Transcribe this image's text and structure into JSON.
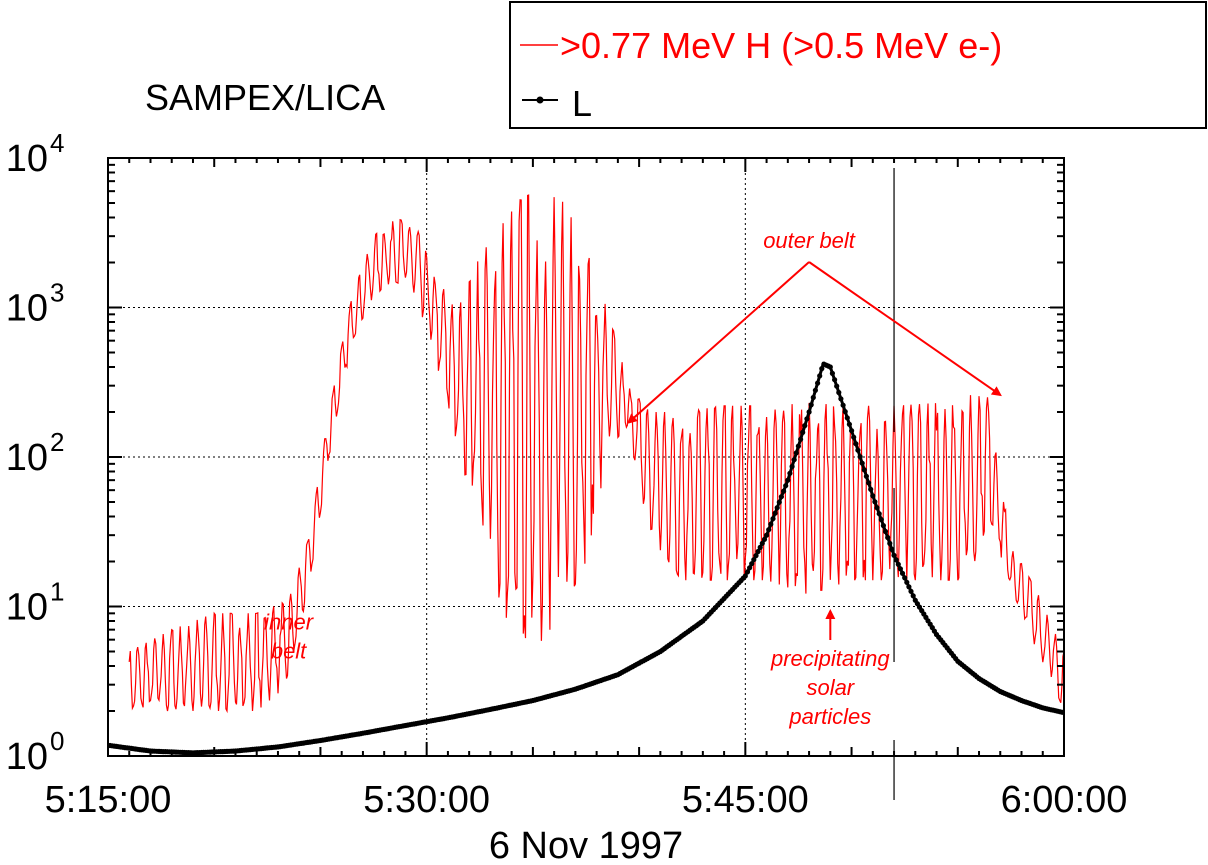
{
  "chart_data": {
    "type": "line",
    "title": "SAMPEX/LICA",
    "xlabel": "6 Nov 1997",
    "ylabel": "",
    "y_scale": "log",
    "xlim": [
      "5:15:00",
      "6:00:00"
    ],
    "ylim": [
      1,
      10000
    ],
    "x_ticks": [
      "5:15:00",
      "5:30:00",
      "5:45:00",
      "6:00:00"
    ],
    "y_ticks": [
      {
        "base": "10",
        "exp": "0"
      },
      {
        "base": "10",
        "exp": "1"
      },
      {
        "base": "10",
        "exp": "2"
      },
      {
        "base": "10",
        "exp": "3"
      },
      {
        "base": "10",
        "exp": "4"
      }
    ],
    "grid": "dotted at major ticks",
    "legend_position": "top-right",
    "series": [
      {
        "name": ">0.77 MeV H (>0.5 MeV e-)",
        "color": "#ff0000",
        "style": "line",
        "envelope": [
          {
            "x": "5:16:00",
            "min": 2,
            "max": 5
          },
          {
            "x": "5:18:00",
            "min": 2,
            "max": 7
          },
          {
            "x": "5:20:00",
            "min": 2,
            "max": 9
          },
          {
            "x": "5:22:00",
            "min": 2,
            "max": 9
          },
          {
            "x": "5:23:30",
            "min": 3,
            "max": 11
          },
          {
            "x": "5:24:30",
            "min": 15,
            "max": 30
          },
          {
            "x": "5:25:30",
            "min": 120,
            "max": 250
          },
          {
            "x": "5:26:30",
            "min": 600,
            "max": 1200
          },
          {
            "x": "5:27:30",
            "min": 1200,
            "max": 3000
          },
          {
            "x": "5:28:30",
            "min": 1500,
            "max": 4000
          },
          {
            "x": "5:29:30",
            "min": 1200,
            "max": 3500
          },
          {
            "x": "5:30:30",
            "min": 400,
            "max": 1500
          },
          {
            "x": "5:31:30",
            "min": 100,
            "max": 1000
          },
          {
            "x": "5:32:30",
            "min": 40,
            "max": 2200
          },
          {
            "x": "5:33:30",
            "min": 10,
            "max": 3500
          },
          {
            "x": "5:34:30",
            "min": 5,
            "max": 5500
          },
          {
            "x": "5:35:30",
            "min": 6,
            "max": 6000
          },
          {
            "x": "5:36:30",
            "min": 10,
            "max": 5000
          },
          {
            "x": "5:37:30",
            "min": 20,
            "max": 2500
          },
          {
            "x": "5:38:30",
            "min": 100,
            "max": 1000
          },
          {
            "x": "5:39:30",
            "min": 150,
            "max": 300
          },
          {
            "x": "5:40:30",
            "min": 30,
            "max": 200
          },
          {
            "x": "5:42:00",
            "min": 15,
            "max": 200
          },
          {
            "x": "5:44:00",
            "min": 15,
            "max": 220
          },
          {
            "x": "5:46:00",
            "min": 15,
            "max": 220
          },
          {
            "x": "5:48:00",
            "min": 12,
            "max": 230
          },
          {
            "x": "5:50:00",
            "min": 15,
            "max": 220
          },
          {
            "x": "5:52:00",
            "min": 15,
            "max": 220
          },
          {
            "x": "5:54:00",
            "min": 15,
            "max": 230
          },
          {
            "x": "5:55:30",
            "min": 15,
            "max": 260
          },
          {
            "x": "5:56:30",
            "min": 40,
            "max": 250
          },
          {
            "x": "5:57:30",
            "min": 12,
            "max": 25
          },
          {
            "x": "5:58:30",
            "min": 6,
            "max": 15
          },
          {
            "x": "5:59:30",
            "min": 3,
            "max": 7
          },
          {
            "x": "6:00:00",
            "min": 2,
            "max": 5
          }
        ]
      },
      {
        "name": "L",
        "color": "#000000",
        "style": "line with dot markers",
        "points": [
          {
            "x": "5:15:00",
            "y": 1.18
          },
          {
            "x": "5:17:00",
            "y": 1.08
          },
          {
            "x": "5:19:00",
            "y": 1.05
          },
          {
            "x": "5:21:00",
            "y": 1.08
          },
          {
            "x": "5:23:00",
            "y": 1.15
          },
          {
            "x": "5:25:00",
            "y": 1.27
          },
          {
            "x": "5:27:00",
            "y": 1.42
          },
          {
            "x": "5:29:00",
            "y": 1.6
          },
          {
            "x": "5:31:00",
            "y": 1.8
          },
          {
            "x": "5:33:00",
            "y": 2.05
          },
          {
            "x": "5:35:00",
            "y": 2.35
          },
          {
            "x": "5:37:00",
            "y": 2.8
          },
          {
            "x": "5:39:00",
            "y": 3.5
          },
          {
            "x": "5:41:00",
            "y": 5.0
          },
          {
            "x": "5:43:00",
            "y": 8.0
          },
          {
            "x": "5:45:00",
            "y": 16
          },
          {
            "x": "5:46:00",
            "y": 30
          },
          {
            "x": "5:47:00",
            "y": 70
          },
          {
            "x": "5:48:00",
            "y": 200
          },
          {
            "x": "5:48:40",
            "y": 420
          },
          {
            "x": "5:49:00",
            "y": 400
          },
          {
            "x": "5:50:00",
            "y": 150
          },
          {
            "x": "5:51:00",
            "y": 55
          },
          {
            "x": "5:52:00",
            "y": 22
          },
          {
            "x": "5:53:00",
            "y": 11
          },
          {
            "x": "5:54:00",
            "y": 6.5
          },
          {
            "x": "5:55:00",
            "y": 4.3
          },
          {
            "x": "5:56:00",
            "y": 3.3
          },
          {
            "x": "5:57:00",
            "y": 2.7
          },
          {
            "x": "5:58:00",
            "y": 2.35
          },
          {
            "x": "5:59:00",
            "y": 2.1
          },
          {
            "x": "6:00:00",
            "y": 1.95
          }
        ]
      }
    ],
    "annotations": [
      {
        "text_lines": [
          "inner",
          "belt"
        ],
        "x": "5:23:30",
        "y": 7
      },
      {
        "text_lines": [
          "outer belt"
        ],
        "x": "5:48:00",
        "y": 2500
      },
      {
        "text_lines": [
          "precipitating",
          "solar",
          "particles"
        ],
        "x": "5:49:00",
        "y": 4
      }
    ],
    "reference_lines": [
      {
        "x": "5:52:00"
      }
    ]
  }
}
